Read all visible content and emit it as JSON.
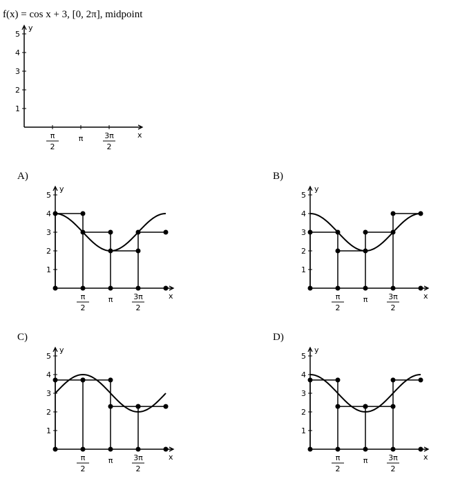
{
  "question": {
    "prompt": "f(x) = cos x + 3, [0, 2π], midpoint",
    "graph": {
      "y_axis_label": "y",
      "x_axis_label": "x",
      "y_tick_labels": [
        "1",
        "2",
        "3",
        "4",
        "5"
      ],
      "x_tick_labels": [
        {
          "numerator": "π",
          "denominator": "2"
        },
        {
          "text": "π"
        },
        {
          "numerator": "3π",
          "denominator": "2"
        }
      ]
    }
  },
  "options": [
    {
      "label": "A)",
      "graph": {
        "y_axis_label": "y",
        "x_axis_label": "x",
        "y_tick_labels": [
          "1",
          "2",
          "3",
          "4",
          "5"
        ],
        "x_tick_labels": [
          {
            "numerator": "π",
            "denominator": "2"
          },
          {
            "text": "π"
          },
          {
            "numerator": "3π",
            "denominator": "2"
          }
        ]
      }
    },
    {
      "label": "B)",
      "graph": {
        "y_axis_label": "y",
        "x_axis_label": "x",
        "y_tick_labels": [
          "1",
          "2",
          "3",
          "4",
          "5"
        ],
        "x_tick_labels": [
          {
            "numerator": "π",
            "denominator": "2"
          },
          {
            "text": "π"
          },
          {
            "numerator": "3π",
            "denominator": "2"
          }
        ]
      }
    },
    {
      "label": "C)",
      "graph": {
        "y_axis_label": "y",
        "x_axis_label": "x",
        "y_tick_labels": [
          "1",
          "2",
          "3",
          "4",
          "5"
        ],
        "x_tick_labels": [
          {
            "numerator": "π",
            "denominator": "2"
          },
          {
            "text": "π"
          },
          {
            "numerator": "3π",
            "denominator": "2"
          }
        ]
      }
    },
    {
      "label": "D)",
      "graph": {
        "y_axis_label": "y",
        "x_axis_label": "x",
        "y_tick_labels": [
          "1",
          "2",
          "3",
          "4",
          "5"
        ],
        "x_tick_labels": [
          {
            "numerator": "π",
            "denominator": "2"
          },
          {
            "text": "π"
          },
          {
            "numerator": "3π",
            "denominator": "2"
          }
        ]
      }
    }
  ]
}
